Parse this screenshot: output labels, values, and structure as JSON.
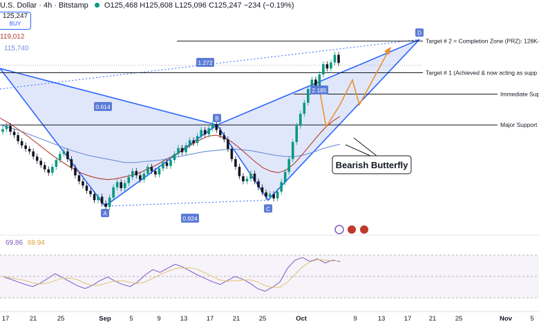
{
  "header": {
    "symbol": "U.S. Dollar · 4h · Bitstamp",
    "ohlc": "O125,468 H125,608 L125,096 C125,247 −234 (−0.19%)"
  },
  "buy_box": {
    "price": "125,247",
    "label": "BUY"
  },
  "indicator_values": {
    "ma1": "119,012",
    "ma2": "115,740"
  },
  "rsi_values": {
    "rsi": "69.86",
    "rsi_ma": "69.94"
  },
  "colors": {
    "up": "#089981",
    "down": "#131722",
    "pattern_fill": "#c8d3f5",
    "pattern_line": "#2962ff",
    "ma1": "#b03a2e",
    "ma2": "#6b8fd6",
    "projection": "#e8912d",
    "rsi": "#7e57c2",
    "rsi_ma": "#e0c36a",
    "label_bg": "#5b7bd6"
  },
  "chart_data": {
    "type": "candlestick",
    "pattern": "Bearish Butterfly",
    "points": [
      {
        "label": "A",
        "x": "Aug 30",
        "y": 108500
      },
      {
        "label": "B",
        "x": "Sep 17",
        "y": 118000
      },
      {
        "label": "C",
        "x": "Sep 26",
        "y": 109200
      },
      {
        "label": "D",
        "x": "Oct 19",
        "y": 128000
      }
    ],
    "fib_ratios": [
      "0.614",
      "0.924",
      "2.185",
      "1.272"
    ],
    "levels": [
      {
        "label": "Target # 2 = Completion Zone (PRZ): 128K-",
        "y": 127800
      },
      {
        "label": "Target # 1 (Achieved & now acting as supp",
        "y": 124100
      },
      {
        "label": "Immediate Sup",
        "y": 121600
      },
      {
        "label": "Major Support",
        "y": 118000
      }
    ],
    "x_ticks": [
      "17",
      "21",
      "25",
      "Sep",
      "5",
      "9",
      "13",
      "17",
      "21",
      "25",
      "Oct",
      "9",
      "13",
      "17",
      "21",
      "25",
      "Nov",
      "5"
    ],
    "y_range": [
      106000,
      131000
    ],
    "candles_close": [
      117500,
      117900,
      117200,
      116800,
      116100,
      115600,
      115200,
      114900,
      114300,
      113800,
      113300,
      112800,
      112400,
      113100,
      113900,
      114600,
      114900,
      114000,
      113000,
      112100,
      111400,
      110900,
      110300,
      109900,
      109200,
      109600,
      108800,
      108400,
      109500,
      110700,
      111300,
      110600,
      111200,
      111900,
      112600,
      112100,
      111600,
      112300,
      113100,
      112600,
      112200,
      112900,
      113600,
      113200,
      113900,
      114600,
      115300,
      114800,
      115600,
      116200,
      115900,
      116700,
      117400,
      116900,
      117600,
      118100,
      117400,
      116800,
      116300,
      115200,
      114000,
      113100,
      112000,
      111400,
      111700,
      112300,
      111400,
      110700,
      110100,
      109600,
      109900,
      109400,
      110200,
      111300,
      112500,
      114000,
      116000,
      117900,
      119300,
      120600,
      122200,
      123300,
      122500,
      123900,
      125100,
      124600,
      125300,
      126200,
      125247
    ],
    "ma1": [
      118800,
      118300,
      117700,
      117100,
      116400,
      115700,
      115000,
      114300,
      113700,
      113100,
      112600,
      112200,
      111900,
      111700,
      111600,
      111700,
      111900,
      112100,
      112400,
      112800,
      113200,
      113700,
      114200,
      114700,
      115200,
      115800,
      116300,
      116700,
      116800,
      116500,
      116000,
      115300,
      114500,
      113700,
      113000,
      112600,
      112400,
      112700,
      113400,
      114400,
      115500,
      116600,
      117600,
      118400,
      119000
    ],
    "ma2": [
      118000,
      117700,
      117400,
      117000,
      116600,
      116200,
      115800,
      115400,
      115000,
      114700,
      114400,
      114200,
      114000,
      113800,
      113600,
      113600,
      113700,
      113800,
      113900,
      114100,
      114300,
      114500,
      114700,
      114900,
      115000,
      115100,
      115200,
      115100,
      115000,
      114800,
      114600,
      114400,
      114300,
      114300,
      114500,
      114800,
      115200,
      115500,
      115740
    ],
    "rsi": [
      48,
      44,
      40,
      36,
      33,
      38,
      45,
      52,
      46,
      40,
      34,
      30,
      35,
      42,
      47,
      41,
      36,
      33,
      40,
      50,
      58,
      54,
      60,
      66,
      62,
      56,
      50,
      45,
      40,
      36,
      42,
      48,
      44,
      38,
      30,
      26,
      32,
      40,
      60,
      72,
      76,
      70,
      74,
      68,
      72,
      69.86
    ],
    "rsi_range": [
      0,
      100
    ]
  },
  "labels": {
    "pattern_name": "Bearish Butterfly"
  }
}
